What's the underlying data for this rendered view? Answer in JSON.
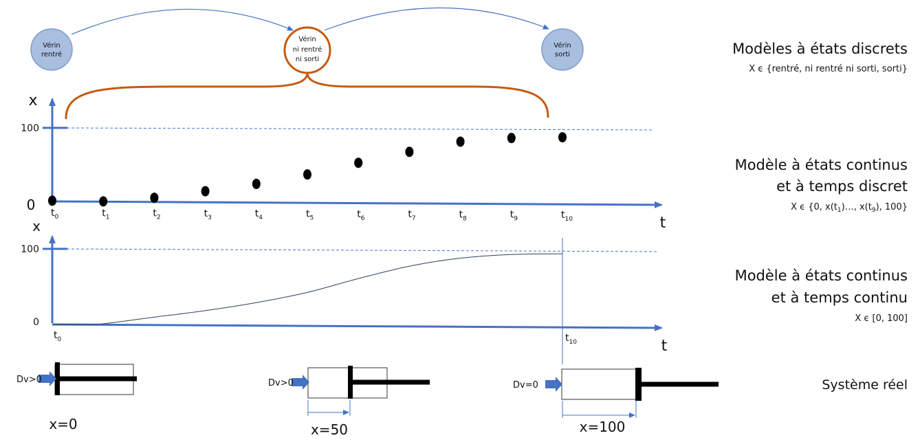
{
  "states": [
    {
      "line1": "Vérin",
      "line2": "rentré",
      "line3": ""
    },
    {
      "line1": "Vérin",
      "line2": "ni rentré",
      "line3": "ni sorti"
    },
    {
      "line1": "Vérin",
      "line2": "sorti",
      "line3": ""
    }
  ],
  "models": {
    "discrete": {
      "title": "Modèles à états discrets",
      "set": "X ϵ {rentré, ni rentré ni sorti, sorti}"
    },
    "cont_discrete_time": {
      "title1": "Modèle à états continus",
      "title2": "et à temps discret",
      "set_prefix": "X ϵ {0, x(t",
      "set_sub1": "1",
      "set_mid": ")…, x(t",
      "set_sub2": "9",
      "set_suffix": "), 100}"
    },
    "cont_cont_time": {
      "title1": "Modèle à états continus",
      "title2": "et à temps continu",
      "set": "X ϵ [0, 100]"
    },
    "real": {
      "title": "Système réel"
    }
  },
  "chart_data": [
    {
      "type": "scatter",
      "xlabel": "t",
      "ylabel": "x",
      "y_ticks": [
        "0",
        "100"
      ],
      "x_tick_labels": [
        {
          "base": "t",
          "sub": "0"
        },
        {
          "base": "t",
          "sub": "1"
        },
        {
          "base": "t",
          "sub": "2"
        },
        {
          "base": "t",
          "sub": "3"
        },
        {
          "base": "t",
          "sub": "4"
        },
        {
          "base": "t",
          "sub": "5"
        },
        {
          "base": "t",
          "sub": "6"
        },
        {
          "base": "t",
          "sub": "7"
        },
        {
          "base": "t",
          "sub": "8"
        },
        {
          "base": "t",
          "sub": "9"
        },
        {
          "base": "t",
          "sub": "10"
        }
      ],
      "x": [
        0,
        1,
        2,
        3,
        4,
        5,
        6,
        7,
        8,
        9,
        10
      ],
      "y": [
        1,
        0,
        5,
        14,
        24,
        37,
        53,
        68,
        82,
        87,
        88
      ],
      "ylim": [
        0,
        100
      ]
    },
    {
      "type": "line",
      "xlabel": "t",
      "ylabel": "x",
      "y_ticks": [
        "0",
        "100"
      ],
      "x_tick_labels": [
        {
          "base": "t",
          "sub": "0"
        },
        {
          "base": "t",
          "sub": "10"
        }
      ],
      "x": [
        0,
        0.6,
        1,
        2,
        3,
        4,
        5,
        6,
        7,
        8,
        9,
        10
      ],
      "y": [
        0,
        0,
        1,
        10,
        19,
        30,
        44,
        63,
        80,
        91,
        96,
        97
      ],
      "ylim": [
        0,
        100
      ]
    }
  ],
  "cylinders": [
    {
      "input": "Dv>0",
      "pos": "x=0"
    },
    {
      "input": "Dv>0",
      "pos": "x=50"
    },
    {
      "input": "Dv=0",
      "pos": "x=100"
    }
  ]
}
